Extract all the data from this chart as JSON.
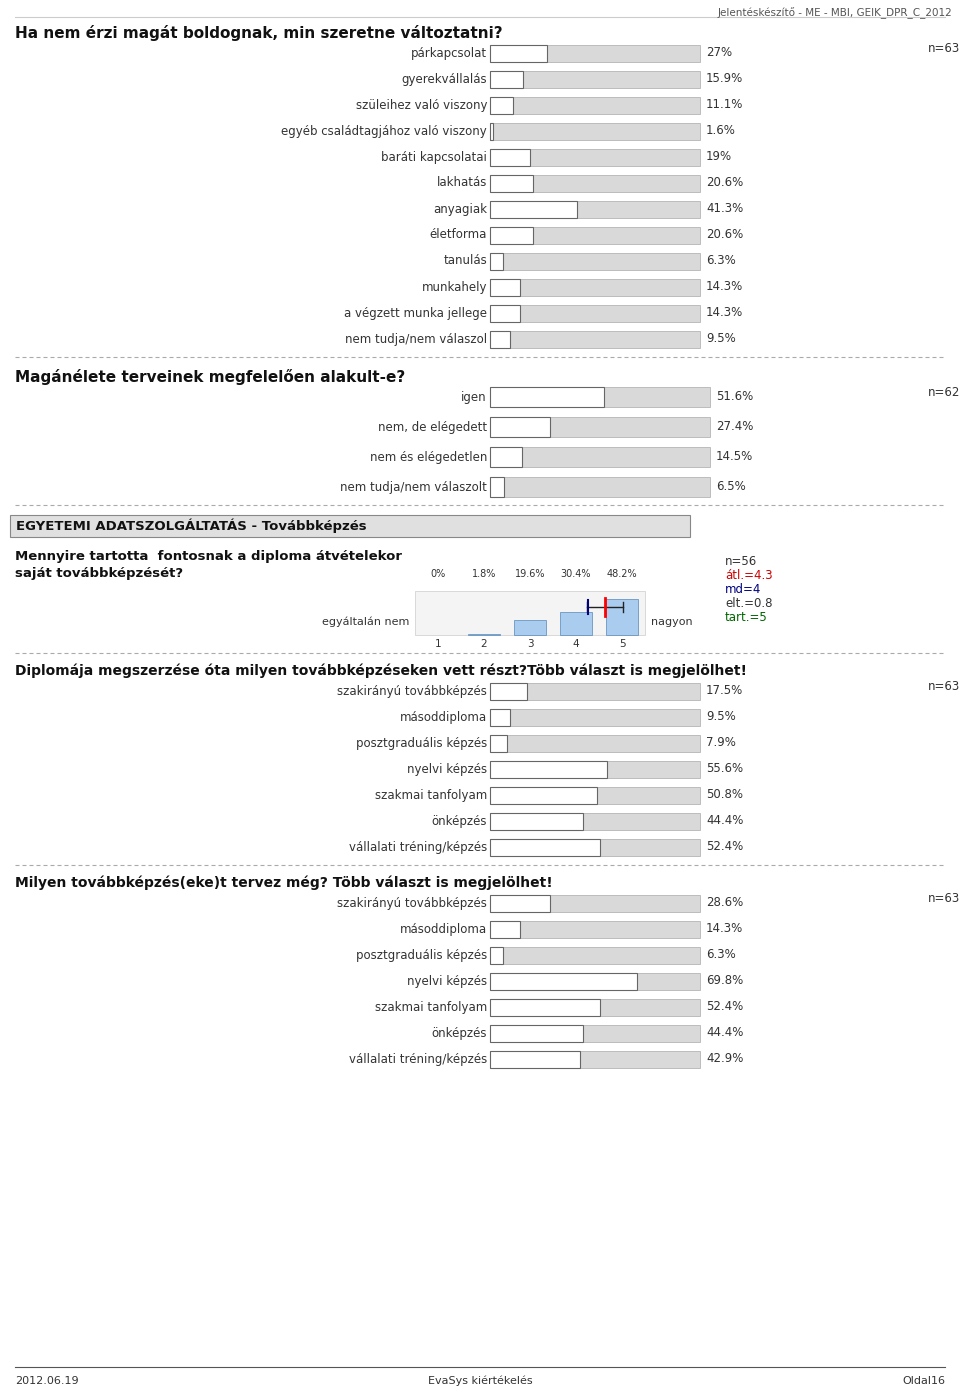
{
  "header_text": "Jelentéskészítő - ME - MBI, GEIK_DPR_C_2012",
  "footer_left": "2012.06.19",
  "footer_center": "EvaSys kiértékelés",
  "footer_right": "Oldal16",
  "bg_color": "#ffffff",
  "section1_title": "Ha nem érzi magát boldognak, min szeretne változtatni?",
  "section1_n": "n=63",
  "section1_categories": [
    "párkapcsolat",
    "gyerekvállalás",
    "szüleihez való viszony",
    "egyéb családtagjához való viszony",
    "baráti kapcsolatai",
    "lakhatás",
    "anyagiak",
    "életforma",
    "tanulás",
    "munkahely",
    "a végzett munka jellege",
    "nem tudja/nem válaszol"
  ],
  "section1_values": [
    27.0,
    15.9,
    11.1,
    1.6,
    19.0,
    20.6,
    41.3,
    20.6,
    6.3,
    14.3,
    14.3,
    9.5
  ],
  "section1_value_labels": [
    "27%",
    "15.9%",
    "11.1%",
    "1.6%",
    "19%",
    "20.6%",
    "41.3%",
    "20.6%",
    "6.3%",
    "14.3%",
    "14.3%",
    "9.5%"
  ],
  "section2_title": "Magánélete terveinek megfelelően alakult-e?",
  "section2_n": "n=62",
  "section2_categories": [
    "igen",
    "nem, de elégedett",
    "nem és elégedetlen",
    "nem tudja/nem válaszolt"
  ],
  "section2_values": [
    51.6,
    27.4,
    14.5,
    6.5
  ],
  "section2_value_labels": [
    "51.6%",
    "27.4%",
    "14.5%",
    "6.5%"
  ],
  "section3_header": "EGYETEMI ADATSZOLGÁLTATÁS - Továbbképzés",
  "section3_question": "Mennyire tartotta  fontosnak a diploma átvételekor\nsaját továbbképzését?",
  "section3_left_label": "egyáltalán nem",
  "section3_right_label": "nagyon",
  "section3_n": "n=56",
  "section3_atl": "átl.=4.3",
  "section3_md": "md=4",
  "section3_elt": "elt.=0.8",
  "section3_tart": "tart.=5",
  "section3_pct_labels": [
    "0%",
    "1.8%",
    "19.6%",
    "30.4%",
    "48.2%"
  ],
  "section3_bar_values": [
    0,
    1.8,
    19.6,
    30.4,
    48.2
  ],
  "section3_mean": 4.3,
  "section3_median": 4,
  "section4_title": "Diplomája megszerzése óta milyen továbbképzéseken vett részt?Több választ is megjelölhet!",
  "section4_n": "n=63",
  "section4_categories": [
    "szakirányú továbbképzés",
    "másoddiploma",
    "posztgraduális képzés",
    "nyelvi képzés",
    "szakmai tanfolyam",
    "önképzés",
    "vállalati tréning/képzés"
  ],
  "section4_values": [
    17.5,
    9.5,
    7.9,
    55.6,
    50.8,
    44.4,
    52.4
  ],
  "section4_value_labels": [
    "17.5%",
    "9.5%",
    "7.9%",
    "55.6%",
    "50.8%",
    "44.4%",
    "52.4%"
  ],
  "section5_title": "Milyen továbbképzés(eke)t tervez még? Több választ is megjelölhet!",
  "section5_n": "n=63",
  "section5_categories": [
    "szakirányú továbbképzés",
    "másoddiploma",
    "posztgraduális képzés",
    "nyelvi képzés",
    "szakmai tanfolyam",
    "önképzés",
    "vállalati tréning/képzés"
  ],
  "section5_values": [
    28.6,
    14.3,
    6.3,
    69.8,
    52.4,
    44.4,
    42.9
  ],
  "section5_value_labels": [
    "28.6%",
    "14.3%",
    "6.3%",
    "69.8%",
    "52.4%",
    "44.4%",
    "42.9%"
  ]
}
